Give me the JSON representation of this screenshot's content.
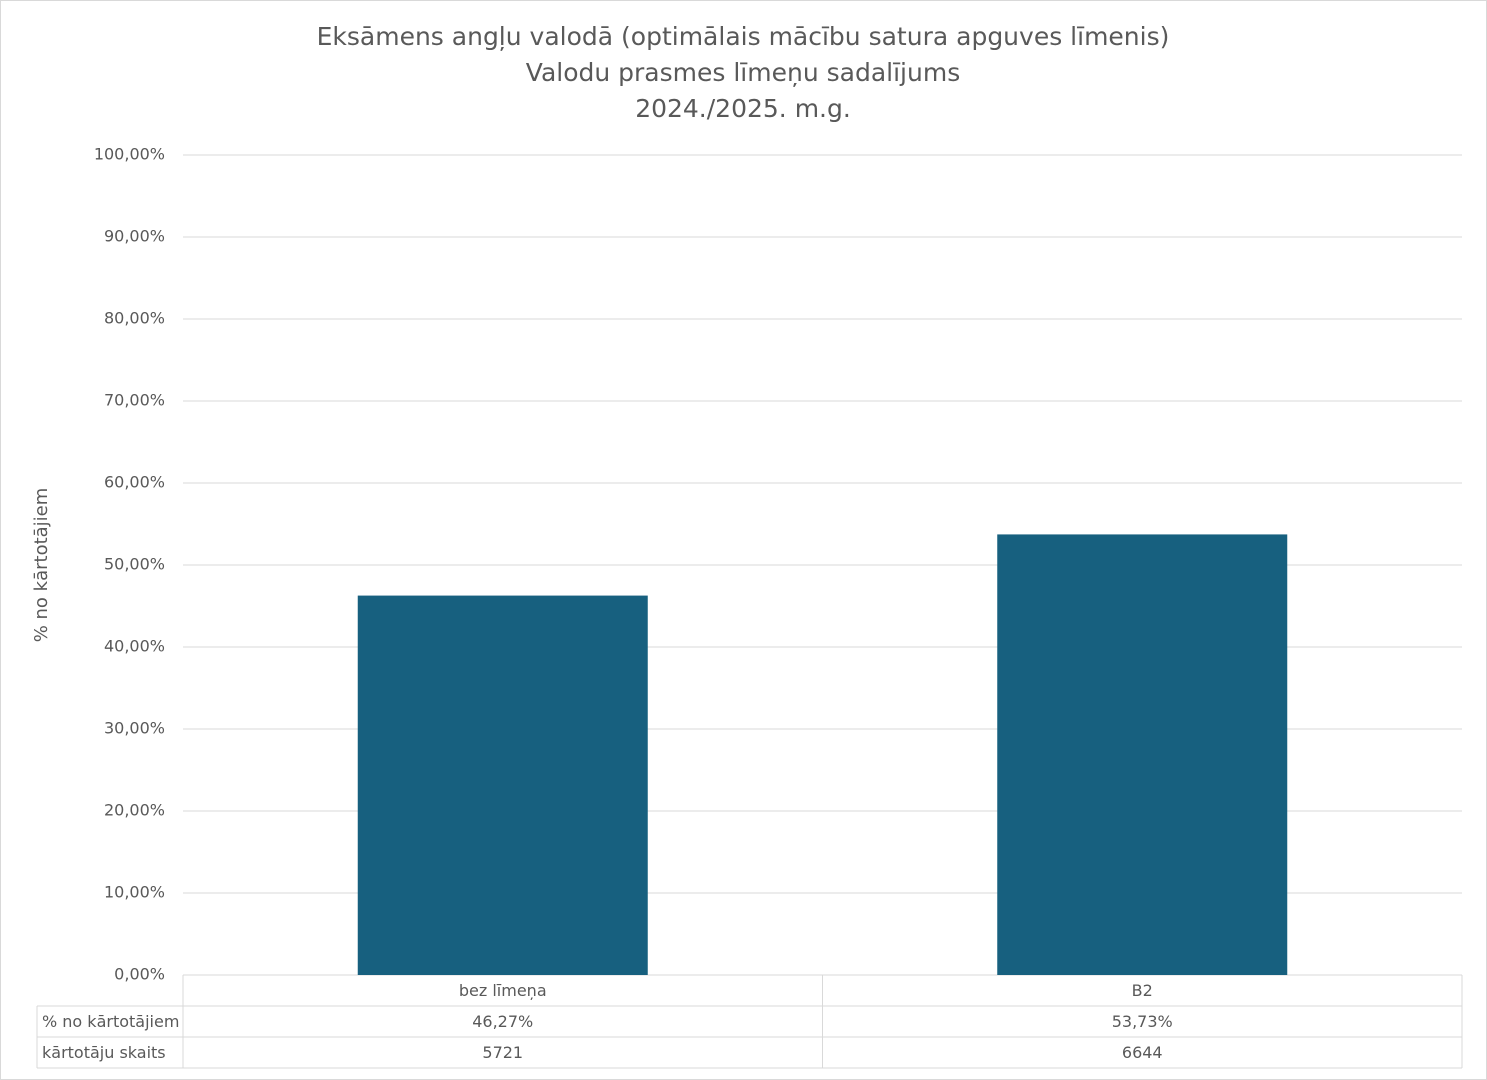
{
  "chart_data": {
    "type": "bar",
    "title_lines": [
      "Eksāmens angļu valodā (optimālais mācību satura apguves līmenis)",
      "Valodu prasmes līmeņu sadalījums",
      "2024./2025. m.g."
    ],
    "y_label": "% no kārtotājiem",
    "categories": [
      "bez līmeņa",
      "B2"
    ],
    "series": [
      {
        "name": "% no kārtotājiem",
        "color": "#17607f",
        "values": [
          46.27,
          53.73
        ],
        "value_labels": [
          "46,27%",
          "53,73%"
        ]
      }
    ],
    "data_table": {
      "rows": [
        {
          "name": "kārtotāju skaits",
          "values": [
            5721,
            6644
          ]
        }
      ]
    },
    "ylim": [
      0,
      100
    ],
    "yticks": [
      {
        "value": 0,
        "label": "0,00%"
      },
      {
        "value": 10,
        "label": "10,00%"
      },
      {
        "value": 20,
        "label": "20,00%"
      },
      {
        "value": 30,
        "label": "30,00%"
      },
      {
        "value": 40,
        "label": "40,00%"
      },
      {
        "value": 50,
        "label": "50,00%"
      },
      {
        "value": 60,
        "label": "60,00%"
      },
      {
        "value": 70,
        "label": "70,00%"
      },
      {
        "value": 80,
        "label": "80,00%"
      },
      {
        "value": 90,
        "label": "90,00%"
      },
      {
        "value": 100,
        "label": "100,00%"
      }
    ],
    "grid": true
  }
}
